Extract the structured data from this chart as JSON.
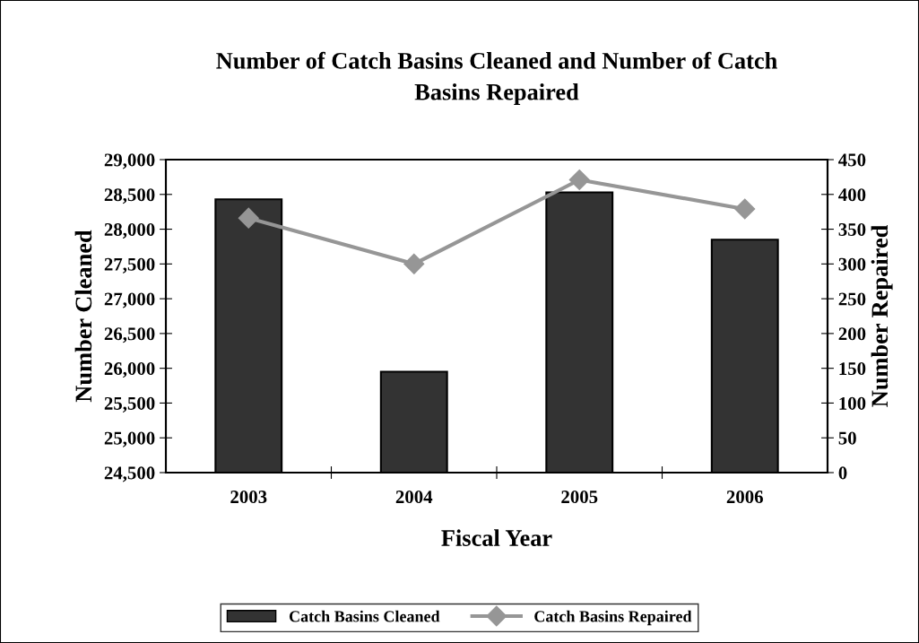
{
  "chart_data": {
    "type": "bar",
    "title": "Number of Catch Basins Cleaned and Number of Catch\nBasins Repaired",
    "xlabel": "Fiscal Year",
    "ylabel": "Number Cleaned",
    "y2label": "Number Repaired",
    "categories": [
      "2003",
      "2004",
      "2005",
      "2006"
    ],
    "series": [
      {
        "name": "Catch Basins Cleaned",
        "color": "#333333",
        "values": [
          28430,
          25950,
          28530,
          27850
        ]
      },
      {
        "name": "Catch Basins Repaired",
        "type": "line",
        "axis": "y2",
        "color": "#969696",
        "marker": "diamond",
        "values": [
          366,
          300,
          421,
          379
        ]
      }
    ],
    "ylim": [
      24500,
      29000
    ],
    "yticks": [
      {
        "value": 24500,
        "label": "24,500"
      },
      {
        "value": 25000,
        "label": "25,000"
      },
      {
        "value": 25500,
        "label": "25,500"
      },
      {
        "value": 26000,
        "label": "26,000"
      },
      {
        "value": 26500,
        "label": "26,500"
      },
      {
        "value": 27000,
        "label": "27,000"
      },
      {
        "value": 27500,
        "label": "27,500"
      },
      {
        "value": 28000,
        "label": "28,000"
      },
      {
        "value": 28500,
        "label": "28,500"
      },
      {
        "value": 29000,
        "label": "29,000"
      }
    ],
    "y2lim": [
      0,
      450
    ],
    "y2ticks": [
      0,
      50,
      100,
      150,
      200,
      250,
      300,
      350,
      400,
      450
    ],
    "grid": false,
    "legend": "bottom"
  }
}
